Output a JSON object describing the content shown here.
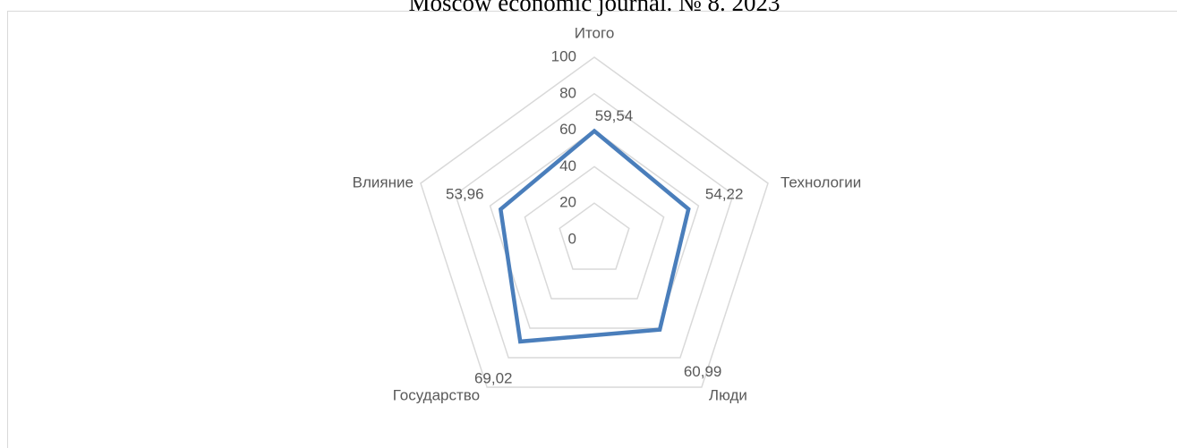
{
  "chart_data": {
    "type": "radar",
    "title": "Moscow economic journal. № 8. 2023",
    "categories": [
      "Итого",
      "Технологии",
      "Люди",
      "Государство",
      "Влияние"
    ],
    "values": [
      59.54,
      54.22,
      60.99,
      69.02,
      53.96
    ],
    "value_labels": [
      "59,54",
      "54,22",
      "60,99",
      "69,02",
      "53,96"
    ],
    "color": "#4a7ebb",
    "ylim": [
      0,
      100
    ],
    "yticks": [
      0,
      20,
      40,
      60,
      80,
      100
    ],
    "grid": true
  }
}
